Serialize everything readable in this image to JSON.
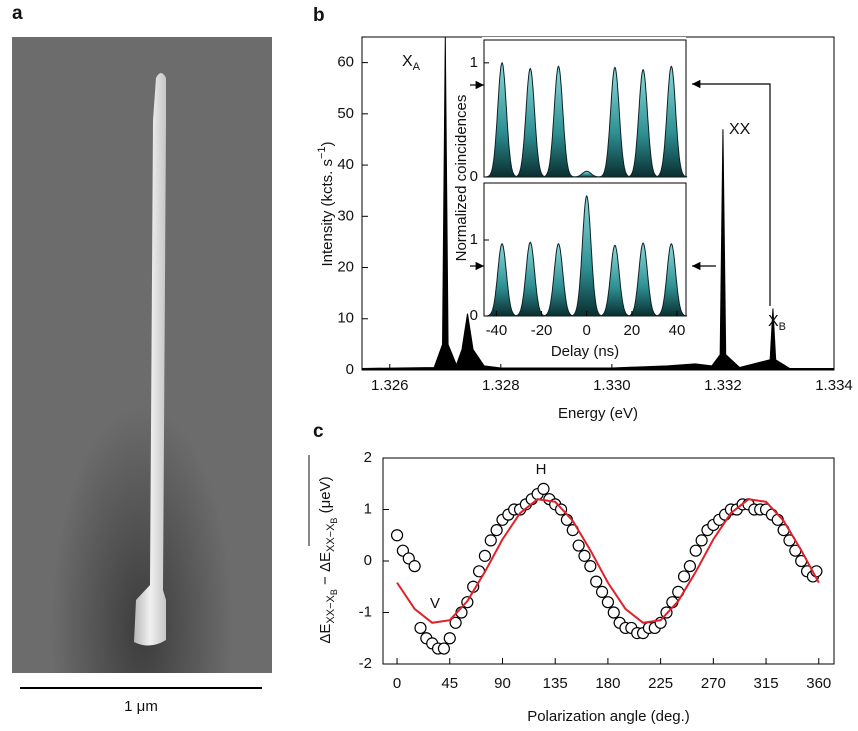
{
  "chart_data": [
    {
      "type": "image",
      "panel_label": "a",
      "scale_bar_label": "1 μm"
    },
    {
      "type": "area",
      "panel_label": "b",
      "x_label": "Energy (eV)",
      "y_label": {
        "text": "Intensity (kcts. s",
        "sup": "−1",
        "tail": ")"
      },
      "x": [
        1.3255,
        1.3268,
        1.32695,
        1.327,
        1.32705,
        1.3272,
        1.3273,
        1.3274,
        1.3275,
        1.3277,
        1.328,
        1.33,
        1.331,
        1.3315,
        1.3318,
        1.33195,
        1.332,
        1.33205,
        1.3323,
        1.33285,
        1.3329,
        1.33295,
        1.3332,
        1.334
      ],
      "values": [
        0.3,
        0.5,
        5,
        65,
        5,
        1,
        4,
        11,
        4,
        0.8,
        0.4,
        0.4,
        0.8,
        1.2,
        0.8,
        3,
        47,
        3,
        0.5,
        2,
        12,
        2,
        0.3,
        0.3
      ],
      "color": "#000000",
      "xlim": [
        1.3255,
        1.334
      ],
      "ylim": [
        0,
        65
      ],
      "xticks": [
        1.326,
        1.328,
        {
          "value": 1.33,
          "label": "1.330"
        },
        1.332,
        1.334
      ],
      "yticks": [
        0,
        10,
        20,
        30,
        40,
        50,
        60
      ],
      "annotations": [
        {
          "text": "X",
          "sub": "A"
        },
        {
          "text": "XX"
        },
        {
          "text": "X",
          "sub": "B"
        }
      ]
    },
    {
      "type": "peaks",
      "x_label": "Delay (ns)",
      "y_label": "Normalized coincidences",
      "xlim": [
        -45.5,
        44
      ],
      "xticks": [
        -40,
        -20,
        0,
        20,
        40
      ],
      "x": [
        -37.5,
        -25,
        -12.5,
        0,
        12.5,
        25,
        37.5
      ],
      "panels": [
        {
          "values": [
            1.0,
            0.95,
            0.97,
            0.05,
            0.96,
            0.94,
            0.97
          ],
          "ylim": [
            0,
            1.2
          ],
          "yticks": [
            0,
            1
          ]
        },
        {
          "values": [
            0.95,
            0.97,
            0.95,
            1.58,
            0.93,
            0.96,
            0.95
          ],
          "ylim": [
            0,
            1.75
          ],
          "yticks": [
            0,
            1
          ]
        }
      ]
    },
    {
      "type": "scatter",
      "panel_label": "c",
      "x_label": "Polarization angle (deg.)",
      "y_label": [
        "ΔE",
        "XX−X",
        "B",
        " − ",
        "ΔE",
        "XX−X",
        "B",
        " (μeV)"
      ],
      "xlim": [
        -12,
        373
      ],
      "ylim": [
        -2,
        2
      ],
      "xticks": [
        0,
        45,
        90,
        135,
        180,
        225,
        270,
        315,
        360
      ],
      "yticks": [
        -2,
        -1,
        0,
        1,
        2
      ],
      "series": [
        {
          "color": "#000000",
          "x": [
            0,
            5,
            10,
            15,
            20,
            25,
            30,
            35,
            40,
            45,
            50,
            55,
            60,
            65,
            70,
            75,
            80,
            85,
            90,
            95,
            100,
            105,
            110,
            115,
            120,
            125,
            130,
            135,
            140,
            145,
            150,
            155,
            160,
            165,
            170,
            175,
            180,
            185,
            190,
            195,
            200,
            205,
            210,
            215,
            220,
            225,
            230,
            235,
            240,
            245,
            250,
            255,
            260,
            265,
            270,
            275,
            280,
            285,
            290,
            295,
            300,
            305,
            310,
            315,
            320,
            325,
            330,
            335,
            340,
            345,
            350,
            355,
            358
          ],
          "values": [
            0.5,
            0.2,
            0.05,
            -0.1,
            -1.3,
            -1.5,
            -1.6,
            -1.7,
            -1.7,
            -1.5,
            -1.2,
            -1.0,
            -0.8,
            -0.5,
            -0.2,
            0.1,
            0.4,
            0.6,
            0.8,
            0.9,
            1.0,
            1.0,
            1.1,
            1.2,
            1.3,
            1.4,
            1.2,
            1.1,
            1.0,
            0.8,
            0.6,
            0.3,
            0.1,
            -0.1,
            -0.4,
            -0.6,
            -0.8,
            -1.0,
            -1.2,
            -1.3,
            -1.3,
            -1.4,
            -1.4,
            -1.3,
            -1.3,
            -1.2,
            -1.0,
            -0.8,
            -0.6,
            -0.3,
            -0.1,
            0.2,
            0.4,
            0.6,
            0.7,
            0.8,
            0.9,
            1.0,
            1.0,
            1.1,
            1.1,
            1.0,
            1.0,
            1.0,
            0.9,
            0.8,
            0.6,
            0.4,
            0.2,
            0.0,
            -0.2,
            -0.3,
            -0.2
          ]
        },
        {
          "color": "#e0202a",
          "x": [
            0,
            15,
            30,
            45,
            60,
            75,
            90,
            105,
            120,
            135,
            150,
            165,
            180,
            195,
            210,
            225,
            240,
            255,
            270,
            285,
            300,
            315,
            330,
            345,
            360
          ],
          "values": [
            -0.42,
            -0.93,
            -1.2,
            -1.15,
            -0.78,
            -0.21,
            0.42,
            0.93,
            1.2,
            1.15,
            0.78,
            0.21,
            -0.42,
            -0.93,
            -1.2,
            -1.15,
            -0.78,
            -0.21,
            0.42,
            0.93,
            1.2,
            1.15,
            0.78,
            0.21,
            -0.42
          ]
        }
      ],
      "annotations": [
        "V",
        "H"
      ],
      "annotation_color": "#2a3a8a"
    }
  ]
}
